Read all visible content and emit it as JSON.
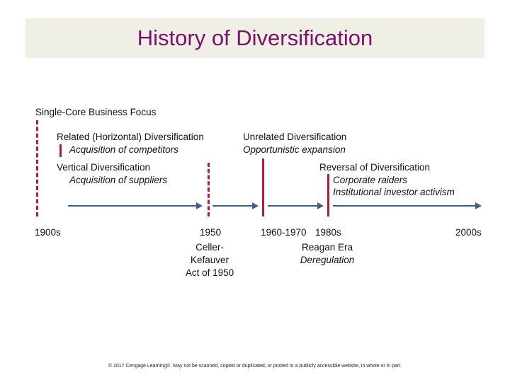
{
  "title": "History of Diversification",
  "labels": {
    "single_core": "Single-Core Business Focus",
    "related": "Related (Horizontal) Diversification",
    "related_sub": "Acquisition of competitors",
    "vertical": "Vertical Diversification",
    "vertical_sub": "Acquisition of suppliers",
    "unrelated": "Unrelated Diversification",
    "unrelated_sub": "Opportunistic expansion",
    "reversal": "Reversal of Diversification",
    "reversal_sub1": "Corporate raiders",
    "reversal_sub2": "Institutional investor activism"
  },
  "timeline": {
    "t1900s": "1900s",
    "t1950": "1950",
    "t1960": "1960-1970",
    "t1980s": "1980s",
    "t2000s": "2000s"
  },
  "events": {
    "celler_line1": "Celler-",
    "celler_line2": "Kefauver",
    "celler_line3": "Act of 1950",
    "reagan_line1": "Reagan Era",
    "reagan_line2": "Deregulation"
  },
  "footer": "© 2017 Cengage Learning®. May not be scanned, copied or duplicated, or posted to a publicly accessible website, in whole or in part.",
  "colors": {
    "title": "#7b1168",
    "marker": "#b01e36",
    "arrow": "#3d5f8c",
    "title_bg": "#efefe6"
  }
}
